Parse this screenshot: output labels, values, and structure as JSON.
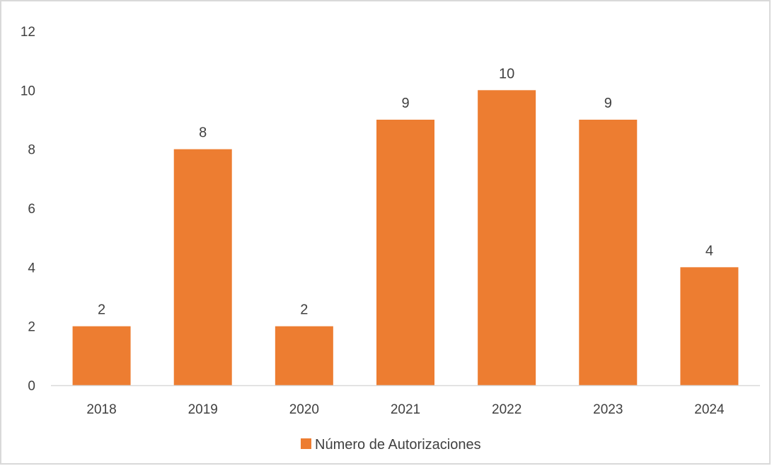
{
  "chart_data": {
    "type": "bar",
    "categories": [
      "2018",
      "2019",
      "2020",
      "2021",
      "2022",
      "2023",
      "2024"
    ],
    "series": [
      {
        "name": "Número de Autorizaciones",
        "values": [
          2,
          8,
          2,
          9,
          10,
          9,
          4
        ]
      }
    ],
    "data_labels": [
      "2",
      "8",
      "2",
      "9",
      "10",
      "9",
      "4"
    ],
    "ylim": [
      0,
      12
    ],
    "yticks": [
      "0",
      "2",
      "4",
      "6",
      "8",
      "10",
      "12"
    ],
    "grid": false,
    "legend_position": "bottom",
    "colors": {
      "bar": "#ed7d31",
      "axis": "#d9d9d9",
      "text": "#404040",
      "border": "#d9d9d9"
    }
  }
}
